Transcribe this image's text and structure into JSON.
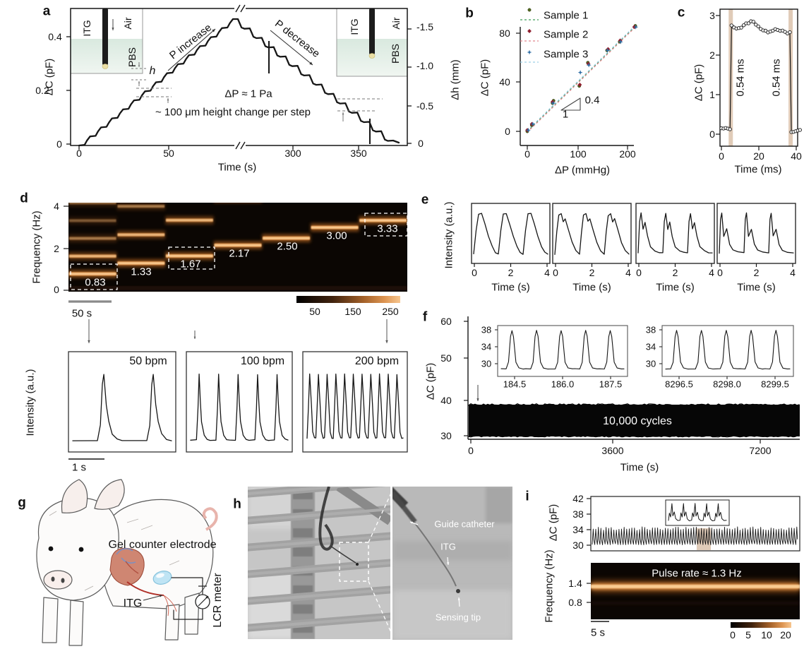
{
  "colors": {
    "trace": "#161616",
    "spectro_bg": "#0b0603",
    "spectro_core": "#f9cb92",
    "spectro_mid": "#e8964a",
    "spectro_glow": "#c96f24",
    "tan_band": "rgba(198,160,126,0.55)",
    "pbs_fill": "#deece4",
    "gel_blue": "#bfe4f4",
    "sample1_marker": "#51681f",
    "sample1_line": "#3f9e57",
    "sample2_marker": "#8f1f2e",
    "sample2_line": "#e2868e",
    "sample3_marker": "#2e6da4",
    "sample3_line": "#9ccfe8"
  },
  "panels": {
    "a": {
      "label": "a",
      "ylabel": "ΔC (pF)",
      "ylabel_right": "Δh (mm)",
      "xlabel": "Time (s)",
      "yticks": [
        "0.4",
        "0.2",
        "0"
      ],
      "yticks_right": [
        "-1.5",
        "-1.0",
        "-0.5",
        "0"
      ],
      "xticks": [
        "0",
        "50",
        "300",
        "350"
      ],
      "p_increase": "P increase",
      "p_decrease": "P decrease",
      "dp_note": "ΔP ≈ 1 Pa",
      "step_note": "~ 100 μm height change per step",
      "h_label": "h",
      "inset": {
        "itg": "ITG",
        "air": "Air",
        "pbs": "PBS"
      }
    },
    "b": {
      "label": "b",
      "ylabel": "ΔC (pF)",
      "xlabel": "ΔP (mmHg)",
      "yticks": [
        "80",
        "40",
        "0"
      ],
      "xticks": [
        "0",
        "100",
        "200"
      ],
      "legend": [
        "Sample 1",
        "Sample 2",
        "Sample 3"
      ],
      "slope_rise": "0.4",
      "slope_run": "1"
    },
    "c": {
      "label": "c",
      "ylabel": "ΔC (pF)",
      "xlabel": "Time (ms)",
      "yticks": [
        "3",
        "2",
        "1",
        "0"
      ],
      "xticks": [
        "0",
        "20",
        "40"
      ],
      "width_label_1": "0.54 ms",
      "width_label_2": "0.54 ms"
    },
    "d": {
      "label": "d",
      "ylabel": "Frequency (Hz)",
      "yticks": [
        "4",
        "2",
        "0"
      ],
      "freq_labels": [
        "0.83",
        "1.33",
        "1.67",
        "2.17",
        "2.50",
        "3.00",
        "3.33"
      ],
      "scalebar": "50 s",
      "colorbar_ticks": [
        "50",
        "150",
        "250"
      ],
      "ylabel_bottom": "Intensity (a.u.)",
      "bpm_labels": [
        "50 bpm",
        "100 bpm",
        "200 bpm"
      ],
      "scalebar_bottom": "1 s"
    },
    "e": {
      "label": "e",
      "ylabel": "Intensity (a.u.)",
      "xlabel": "Time (s)",
      "xticks": [
        "0",
        "2",
        "4"
      ]
    },
    "f": {
      "label": "f",
      "ylabel": "ΔC (pF)",
      "xlabel": "Time (s)",
      "yticks": [
        "60",
        "50",
        "40",
        "30"
      ],
      "xticks": [
        "0",
        "3600",
        "7200"
      ],
      "cycles_note": "10,000 cycles",
      "insets": [
        {
          "yticks": [
            "38",
            "34",
            "30"
          ],
          "xticks": [
            "184.5",
            "186.0",
            "187.5"
          ]
        },
        {
          "yticks": [
            "38",
            "34",
            "30"
          ],
          "xticks": [
            "8296.5",
            "8298.0",
            "8299.5"
          ]
        }
      ]
    },
    "g": {
      "label": "g",
      "electrode": "Gel counter electrode",
      "itg": "ITG",
      "meter": "LCR meter"
    },
    "h": {
      "label": "h",
      "guide": "Guide catheter",
      "itg": "ITG",
      "tip": "Sensing tip"
    },
    "i": {
      "label": "i",
      "ylabel": "ΔC (pF)",
      "ylabel_bottom": "Frequency (Hz)",
      "yticks": [
        "42",
        "38",
        "34",
        "30"
      ],
      "yticks_bottom": [
        "1.4",
        "0.8"
      ],
      "pulse_note": "Pulse rate ≈ 1.3 Hz",
      "scalebar": "5 s",
      "colorbar_ticks": [
        "0",
        "5",
        "10",
        "20"
      ]
    }
  },
  "chart_data": [
    {
      "id": "a",
      "type": "line",
      "xlabel": "Time (s)",
      "ylabel": "ΔC (pF)",
      "y2label": "Δh (mm)",
      "xticks": [
        0,
        50,
        300,
        350
      ],
      "axis_break_between": [
        50,
        300
      ],
      "ylim": [
        0,
        0.5
      ],
      "y2ticks": [
        -1.5,
        -1.0,
        -0.5,
        0
      ],
      "steps_up": 14,
      "steps_down": 13,
      "peak_dC_pF": 0.46,
      "step_height_um": 100,
      "dP_per_step_Pa": 1
    },
    {
      "id": "b",
      "type": "scatter",
      "xlabel": "ΔP (mmHg)",
      "ylabel": "ΔC (pF)",
      "xticks": [
        0,
        100,
        200
      ],
      "yticks": [
        0,
        40,
        80
      ],
      "slope_pF_per_mmHg": 0.4,
      "series": [
        {
          "name": "Sample 1",
          "points": [
            [
              0,
              0
            ],
            [
              9,
              5
            ],
            [
              50,
              23
            ],
            [
              52,
              25
            ],
            [
              103,
              37
            ],
            [
              120,
              56
            ],
            [
              158,
              66
            ],
            [
              183,
              73
            ],
            [
              214,
              86
            ]
          ]
        },
        {
          "name": "Sample 2",
          "points": [
            [
              0,
              1
            ],
            [
              9,
              6
            ],
            [
              50,
              24
            ],
            [
              104,
              38
            ],
            [
              121,
              55
            ],
            [
              160,
              67
            ],
            [
              184,
              74
            ],
            [
              212,
              85
            ]
          ]
        },
        {
          "name": "Sample 3",
          "points": [
            [
              2,
              1
            ],
            [
              11,
              6
            ],
            [
              51,
              23
            ],
            [
              105,
              48
            ],
            [
              122,
              54
            ],
            [
              159,
              66
            ],
            [
              185,
              73
            ],
            [
              215,
              85
            ]
          ]
        }
      ]
    },
    {
      "id": "c",
      "type": "line",
      "xlabel": "Time (ms)",
      "ylabel": "ΔC (pF)",
      "xticks": [
        0,
        20,
        40
      ],
      "yticks": [
        0,
        1,
        2,
        3
      ],
      "low_pF": 0.12,
      "high_pF": 2.7,
      "rise_at_ms": 5,
      "fall_at_ms": 37,
      "rise_time_ms": 0.54,
      "fall_time_ms": 0.54
    },
    {
      "id": "d_spectrogram",
      "type": "heatmap",
      "ylabel": "Frequency (Hz)",
      "ylim": [
        0,
        4.5
      ],
      "segment_fundamentals_hz": [
        0.83,
        1.33,
        1.67,
        2.17,
        2.5,
        3.0,
        3.33
      ],
      "boxed_segments": [
        0.83,
        1.67,
        3.33
      ],
      "colorbar_ticks": [
        50,
        150,
        250
      ],
      "scalebar_s": 50
    },
    {
      "id": "d_waveforms",
      "type": "line",
      "ylabel": "Intensity (a.u.)",
      "scalebar_s": 1,
      "traces": [
        {
          "label": "50 bpm",
          "peaks": 2
        },
        {
          "label": "100 bpm",
          "peaks": 5
        },
        {
          "label": "200 bpm",
          "peaks": 11
        }
      ]
    },
    {
      "id": "e",
      "type": "line",
      "ylabel": "Intensity (a.u.)",
      "xlabel": "Time (s)",
      "xticks": [
        0,
        2,
        4
      ],
      "xlim": [
        0,
        4.5
      ],
      "traces": [
        {
          "peaks": 3,
          "shape": "smooth"
        },
        {
          "peaks": 3,
          "shape": "shoulder"
        },
        {
          "peaks": 3,
          "shape": "notched"
        },
        {
          "peaks": 3,
          "shape": "double"
        }
      ]
    },
    {
      "id": "f",
      "type": "line",
      "xlabel": "Time (s)",
      "ylabel": "ΔC (pF)",
      "ylim": [
        30,
        60
      ],
      "xticks": [
        0,
        3600,
        7200
      ],
      "band_pF": [
        30.5,
        38.5
      ],
      "cycles": 10000,
      "insets": [
        {
          "xticks": [
            184.5,
            186.0,
            187.5
          ],
          "yticks": [
            30,
            34,
            38
          ],
          "peaks": 5
        },
        {
          "xticks": [
            8296.5,
            8298.0,
            8299.5
          ],
          "yticks": [
            30,
            34,
            38
          ],
          "peaks": 5
        }
      ]
    },
    {
      "id": "i_trace",
      "type": "line",
      "ylabel": "ΔC (pF)",
      "yticks": [
        30,
        34,
        38,
        42
      ],
      "baseline_pF": 31,
      "peak_pF": 34.5
    },
    {
      "id": "i_spectrogram",
      "type": "heatmap",
      "ylabel": "Frequency (Hz)",
      "yticks": [
        0.8,
        1.4
      ],
      "band_hz": 1.3,
      "colorbar_ticks": [
        0,
        5,
        10,
        20
      ],
      "scalebar_s": 5
    }
  ]
}
